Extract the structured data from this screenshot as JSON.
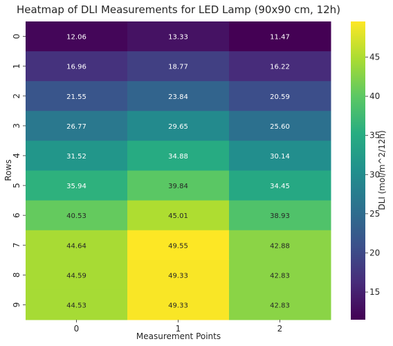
{
  "chart_data": {
    "type": "heatmap",
    "title": "Heatmap of DLI Measurements for LED Lamp (90x90 cm, 12h)",
    "xlabel": "Measurement Points",
    "ylabel": "Rows",
    "colorbar_label": "DLI (mol/m^2/12h)",
    "colormap": "viridis",
    "vmin": 11.47,
    "vmax": 49.55,
    "x_categories": [
      "0",
      "1",
      "2"
    ],
    "y_categories": [
      "0",
      "1",
      "2",
      "3",
      "4",
      "5",
      "6",
      "7",
      "8",
      "9"
    ],
    "values": [
      [
        12.06,
        13.33,
        11.47
      ],
      [
        16.96,
        18.77,
        16.22
      ],
      [
        21.55,
        23.84,
        20.59
      ],
      [
        26.77,
        29.65,
        25.6
      ],
      [
        31.52,
        34.88,
        30.14
      ],
      [
        35.94,
        39.84,
        34.45
      ],
      [
        40.53,
        45.01,
        38.93
      ],
      [
        44.64,
        49.55,
        42.88
      ],
      [
        44.59,
        49.33,
        42.83
      ],
      [
        44.53,
        49.33,
        42.83
      ]
    ],
    "colorbar_ticks": [
      15,
      20,
      25,
      30,
      35,
      40,
      45
    ]
  }
}
